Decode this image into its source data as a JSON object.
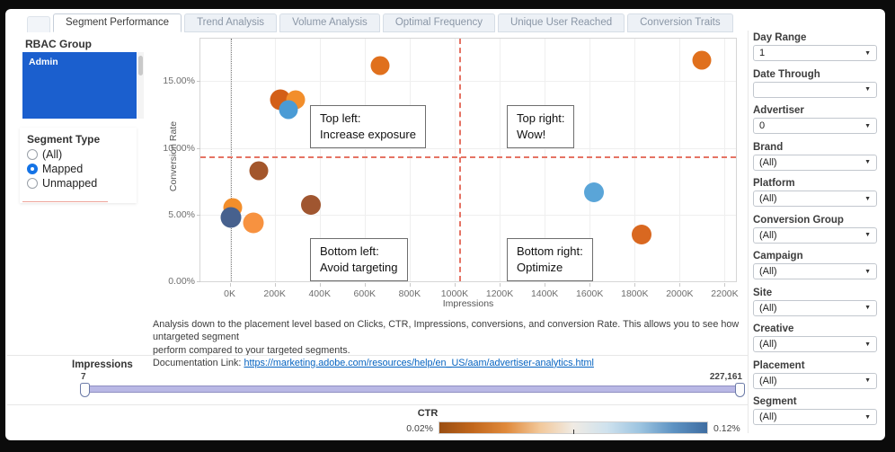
{
  "tabs": {
    "active": "Segment Performance",
    "items": [
      "Segment Performance",
      "Trend Analysis",
      "Volume Analysis",
      "Optimal Frequency",
      "Unique User Reached",
      "Conversion Traits"
    ]
  },
  "rbac": {
    "title": "RBAC Group",
    "selected_item": "Admin",
    "selected_color": "#1b5fce"
  },
  "segment_type": {
    "title": "Segment Type",
    "options": [
      {
        "label": "(All)",
        "selected": false
      },
      {
        "label": "Mapped",
        "selected": true
      },
      {
        "label": "Unmapped",
        "selected": false
      }
    ]
  },
  "chart_data": {
    "type": "scatter",
    "xlabel": "Impressions",
    "ylabel": "Conversion Rate",
    "x_range_k": [
      -130,
      2250
    ],
    "y_range_pct": [
      0,
      18.2
    ],
    "x_ticks": [
      {
        "k": 0,
        "label": "0K"
      },
      {
        "k": 200,
        "label": "200K"
      },
      {
        "k": 400,
        "label": "400K"
      },
      {
        "k": 600,
        "label": "600K"
      },
      {
        "k": 800,
        "label": "800K"
      },
      {
        "k": 1000,
        "label": "1000K"
      },
      {
        "k": 1200,
        "label": "1200K"
      },
      {
        "k": 1400,
        "label": "1400K"
      },
      {
        "k": 1600,
        "label": "1600K"
      },
      {
        "k": 1800,
        "label": "1800K"
      },
      {
        "k": 2000,
        "label": "2000K"
      },
      {
        "k": 2200,
        "label": "2200K"
      }
    ],
    "y_ticks": [
      {
        "pct": 0,
        "label": "0.00%"
      },
      {
        "pct": 5,
        "label": "5.00%"
      },
      {
        "pct": 10,
        "label": "10.00%"
      },
      {
        "pct": 15,
        "label": "15.00%"
      }
    ],
    "points": [
      {
        "impressions_k": 670,
        "conversion_rate_pct": 16.2,
        "color": "#e0701d",
        "diameter": 21
      },
      {
        "impressions_k": 2100,
        "conversion_rate_pct": 16.6,
        "color": "#e0701d",
        "diameter": 21
      },
      {
        "impressions_k": 225,
        "conversion_rate_pct": 13.6,
        "color": "#d35f17",
        "diameter": 23
      },
      {
        "impressions_k": 292,
        "conversion_rate_pct": 13.6,
        "color": "#f28e2b",
        "diameter": 21
      },
      {
        "impressions_k": 262,
        "conversion_rate_pct": 12.9,
        "color": "#4a9bd5",
        "diameter": 21
      },
      {
        "impressions_k": 130,
        "conversion_rate_pct": 8.3,
        "color": "#a3562b",
        "diameter": 21
      },
      {
        "impressions_k": 360,
        "conversion_rate_pct": 5.7,
        "color": "#a05630",
        "diameter": 22
      },
      {
        "impressions_k": 15,
        "conversion_rate_pct": 5.5,
        "color": "#f28e2b",
        "diameter": 21
      },
      {
        "impressions_k": 5,
        "conversion_rate_pct": 4.8,
        "color": "#47618e",
        "diameter": 23
      },
      {
        "impressions_k": 105,
        "conversion_rate_pct": 4.4,
        "color": "#f79240",
        "diameter": 23
      },
      {
        "impressions_k": 1620,
        "conversion_rate_pct": 6.7,
        "color": "#5aa5d8",
        "diameter": 22
      },
      {
        "impressions_k": 1830,
        "conversion_rate_pct": 3.5,
        "color": "#d96820",
        "diameter": 22
      }
    ],
    "reference_lines": {
      "h_conversion_rate_pct": 9.4,
      "v_impressions_k": 1020,
      "origin_k": 5
    },
    "annotations": [
      {
        "pos": "tl",
        "title": "Top left:",
        "text": "Increase exposure"
      },
      {
        "pos": "tr",
        "title": "Top right:",
        "text": "Wow!"
      },
      {
        "pos": "bl",
        "title": "Bottom left:",
        "text": "Avoid targeting"
      },
      {
        "pos": "br",
        "title": "Bottom right:",
        "text": "Optimize"
      }
    ],
    "grid": true,
    "legend_position": "bottom"
  },
  "description": {
    "line1": "Analysis down to the placement level based on Clicks, CTR, Impressions, conversions, and conversion Rate. This allows you to see how untargeted segment",
    "line2": "perform compared to your targeted segments.",
    "doc_prefix": "Documentation Link: ",
    "doc_link": "https://marketing.adobe.com/resources/help/en_US/aam/advertiser-analytics.html"
  },
  "impressions_slider": {
    "label": "Impressions",
    "min_value": "7",
    "max_value": "227,161"
  },
  "ctr_legend": {
    "label": "CTR",
    "min_label": "0.02%",
    "max_label": "0.12%",
    "gradient_colors": [
      "#9a4e12",
      "#c2671c",
      "#e08a3c",
      "#f2c89a",
      "#f0ebe4",
      "#cfe2ee",
      "#9cc4e0",
      "#5d92c2",
      "#3f6da1"
    ]
  },
  "filters": [
    {
      "label": "Day Range",
      "value": "1"
    },
    {
      "label": "Date Through",
      "value": ""
    },
    {
      "label": "Advertiser",
      "value": "0"
    },
    {
      "label": "Brand",
      "value": "(All)"
    },
    {
      "label": "Platform",
      "value": "(All)"
    },
    {
      "label": "Conversion Group",
      "value": "(All)"
    },
    {
      "label": "Campaign",
      "value": "(All)"
    },
    {
      "label": "Site",
      "value": "(All)"
    },
    {
      "label": "Creative",
      "value": "(All)"
    },
    {
      "label": "Placement",
      "value": "(All)"
    },
    {
      "label": "Segment",
      "value": "(All)"
    }
  ]
}
